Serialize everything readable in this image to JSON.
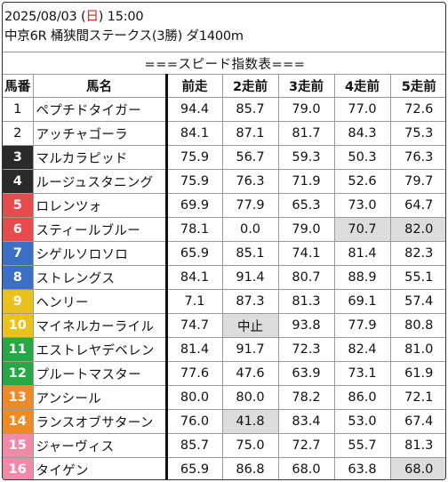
{
  "header": {
    "date": "2025/08/03",
    "day_open": "(",
    "day": "日",
    "day_close": ")",
    "time": "15:00",
    "race": "中京6R 桶狭間ステークス(3勝) ダ1400m"
  },
  "table": {
    "title": "===スピード指数表===",
    "columns": [
      "馬番",
      "馬名",
      "前走",
      "2走前",
      "3走前",
      "4走前",
      "5走前"
    ],
    "frame_colors": {
      "white": "#ffffff",
      "black": "#2a2a2a",
      "red": "#e84b4b",
      "blue": "#3c6fc8",
      "yellow": "#ebc21b",
      "green": "#27a745",
      "orange": "#f08a24",
      "pink": "#f18aa8"
    },
    "highlight_color": "#dcdcdc",
    "rows": [
      {
        "num": "1",
        "name": "ペプチドタイガー",
        "vals": [
          "94.4",
          "85.7",
          "79.0",
          "77.0",
          "72.6"
        ],
        "frame": "white",
        "hl": []
      },
      {
        "num": "2",
        "name": "アッチャゴーラ",
        "vals": [
          "84.1",
          "87.1",
          "81.7",
          "84.3",
          "75.3"
        ],
        "frame": "white",
        "hl": []
      },
      {
        "num": "3",
        "name": "マルカラピッド",
        "vals": [
          "75.9",
          "56.7",
          "59.3",
          "50.3",
          "76.3"
        ],
        "frame": "black",
        "hl": []
      },
      {
        "num": "4",
        "name": "ルージュスタニング",
        "vals": [
          "75.9",
          "76.3",
          "71.9",
          "52.6",
          "79.7"
        ],
        "frame": "black",
        "hl": []
      },
      {
        "num": "5",
        "name": "ロレンツォ",
        "vals": [
          "69.9",
          "77.9",
          "65.3",
          "73.0",
          "64.7"
        ],
        "frame": "red",
        "hl": []
      },
      {
        "num": "6",
        "name": "スティールブルー",
        "vals": [
          "78.1",
          "0.0",
          "79.0",
          "70.7",
          "82.0"
        ],
        "frame": "red",
        "hl": [
          3,
          4
        ]
      },
      {
        "num": "7",
        "name": "シゲルソロソロ",
        "vals": [
          "65.9",
          "85.1",
          "74.1",
          "81.4",
          "82.3"
        ],
        "frame": "blue",
        "hl": []
      },
      {
        "num": "8",
        "name": "ストレングス",
        "vals": [
          "84.1",
          "91.4",
          "80.7",
          "88.9",
          "55.1"
        ],
        "frame": "blue",
        "hl": []
      },
      {
        "num": "9",
        "name": "ヘンリー",
        "vals": [
          "7.1",
          "87.3",
          "81.3",
          "69.1",
          "57.4"
        ],
        "frame": "yellow",
        "hl": []
      },
      {
        "num": "10",
        "name": "マイネルカーライル",
        "vals": [
          "74.7",
          "中止",
          "93.8",
          "77.9",
          "80.8"
        ],
        "frame": "yellow",
        "hl": [
          1
        ]
      },
      {
        "num": "11",
        "name": "エストレヤデベレン",
        "vals": [
          "81.4",
          "91.7",
          "72.3",
          "82.4",
          "81.0"
        ],
        "frame": "green",
        "hl": []
      },
      {
        "num": "12",
        "name": "プルートマスター",
        "vals": [
          "77.6",
          "47.6",
          "63.9",
          "73.1",
          "61.9"
        ],
        "frame": "green",
        "hl": []
      },
      {
        "num": "13",
        "name": "アンシール",
        "vals": [
          "80.0",
          "80.0",
          "78.2",
          "86.0",
          "72.1"
        ],
        "frame": "orange",
        "hl": []
      },
      {
        "num": "14",
        "name": "ランスオブサターン",
        "vals": [
          "76.0",
          "41.8",
          "83.4",
          "53.0",
          "67.4"
        ],
        "frame": "orange",
        "hl": [
          1
        ]
      },
      {
        "num": "15",
        "name": "ジャーヴィス",
        "vals": [
          "85.7",
          "75.0",
          "72.7",
          "55.7",
          "81.3"
        ],
        "frame": "pink",
        "hl": []
      },
      {
        "num": "16",
        "name": "タイゲン",
        "vals": [
          "65.9",
          "86.8",
          "68.0",
          "63.8",
          "68.0"
        ],
        "frame": "pink",
        "hl": [
          4
        ]
      }
    ]
  }
}
